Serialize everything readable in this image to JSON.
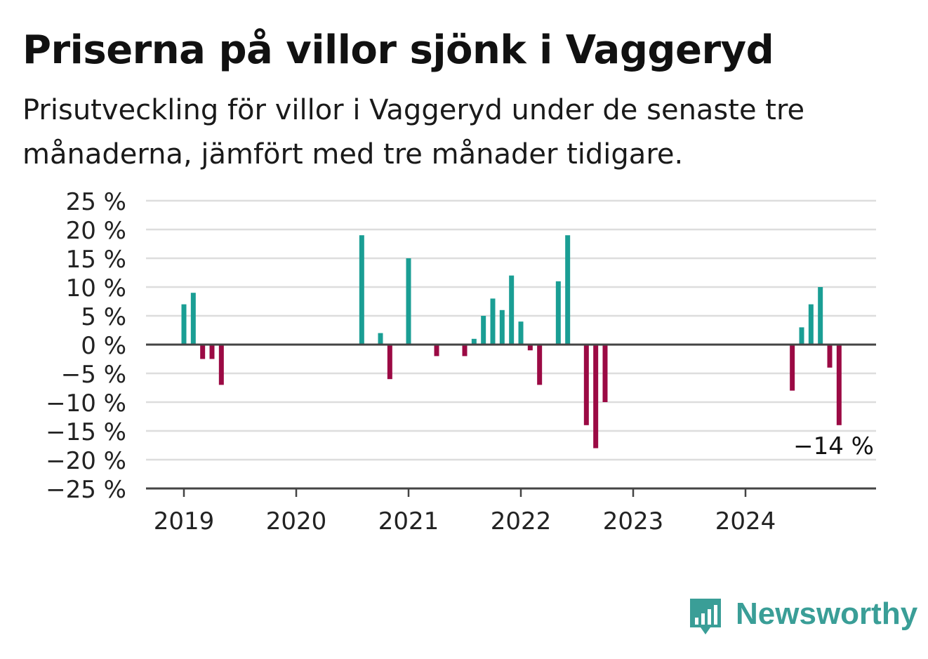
{
  "title": "Priserna på villor sjönk i Vaggeryd",
  "subtitle": "Prisutveckling för villor i Vaggeryd under de senaste tre månaderna, jämfört med tre månader tidigare.",
  "brand": {
    "name": "Newsworthy",
    "icon": "bar-chart-speech-bubble-icon",
    "color": "#3a9e97"
  },
  "colors": {
    "positive": "#1a9e94",
    "negative": "#9b0a44",
    "grid": "#dddddd",
    "axis": "#444444"
  },
  "chart_data": {
    "type": "bar",
    "title": "",
    "xlabel": "",
    "ylabel": "",
    "ylim": [
      -25,
      25
    ],
    "y_ticks": [
      25,
      20,
      15,
      10,
      5,
      0,
      -5,
      -10,
      -15,
      -20,
      -25
    ],
    "y_tick_labels": [
      "25 %",
      "20 %",
      "15 %",
      "10 %",
      "5 %",
      "0 %",
      "−5 %",
      "−10 %",
      "−15 %",
      "−20 %",
      "−25 %"
    ],
    "x_tick_labels": [
      "2019",
      "2020",
      "2021",
      "2022",
      "2023",
      "2024"
    ],
    "grid": true,
    "series": [
      {
        "values": [
          {
            "date": "2019-01",
            "value": 7
          },
          {
            "date": "2019-02",
            "value": 9
          },
          {
            "date": "2019-03",
            "value": -2.5
          },
          {
            "date": "2019-04",
            "value": -2.5
          },
          {
            "date": "2019-05",
            "value": -7
          },
          {
            "date": "2020-08",
            "value": 19
          },
          {
            "date": "2020-10",
            "value": 2
          },
          {
            "date": "2020-11",
            "value": -6
          },
          {
            "date": "2021-01",
            "value": 15
          },
          {
            "date": "2021-04",
            "value": -2
          },
          {
            "date": "2021-07",
            "value": -2
          },
          {
            "date": "2021-08",
            "value": 1
          },
          {
            "date": "2021-09",
            "value": 5
          },
          {
            "date": "2021-10",
            "value": 8
          },
          {
            "date": "2021-11",
            "value": 6
          },
          {
            "date": "2021-12",
            "value": 12
          },
          {
            "date": "2022-01",
            "value": 4
          },
          {
            "date": "2022-02",
            "value": -1
          },
          {
            "date": "2022-03",
            "value": -7
          },
          {
            "date": "2022-05",
            "value": 11
          },
          {
            "date": "2022-06",
            "value": 19
          },
          {
            "date": "2022-08",
            "value": -14
          },
          {
            "date": "2022-09",
            "value": -18
          },
          {
            "date": "2022-10",
            "value": -10
          },
          {
            "date": "2024-06",
            "value": -8
          },
          {
            "date": "2024-07",
            "value": 3
          },
          {
            "date": "2024-08",
            "value": 7
          },
          {
            "date": "2024-09",
            "value": 10
          },
          {
            "date": "2024-10",
            "value": -4
          },
          {
            "date": "2024-11",
            "value": -14
          }
        ]
      }
    ],
    "annotations": [
      {
        "text": "−14 %",
        "date": "2024-11",
        "value": -14
      }
    ]
  }
}
